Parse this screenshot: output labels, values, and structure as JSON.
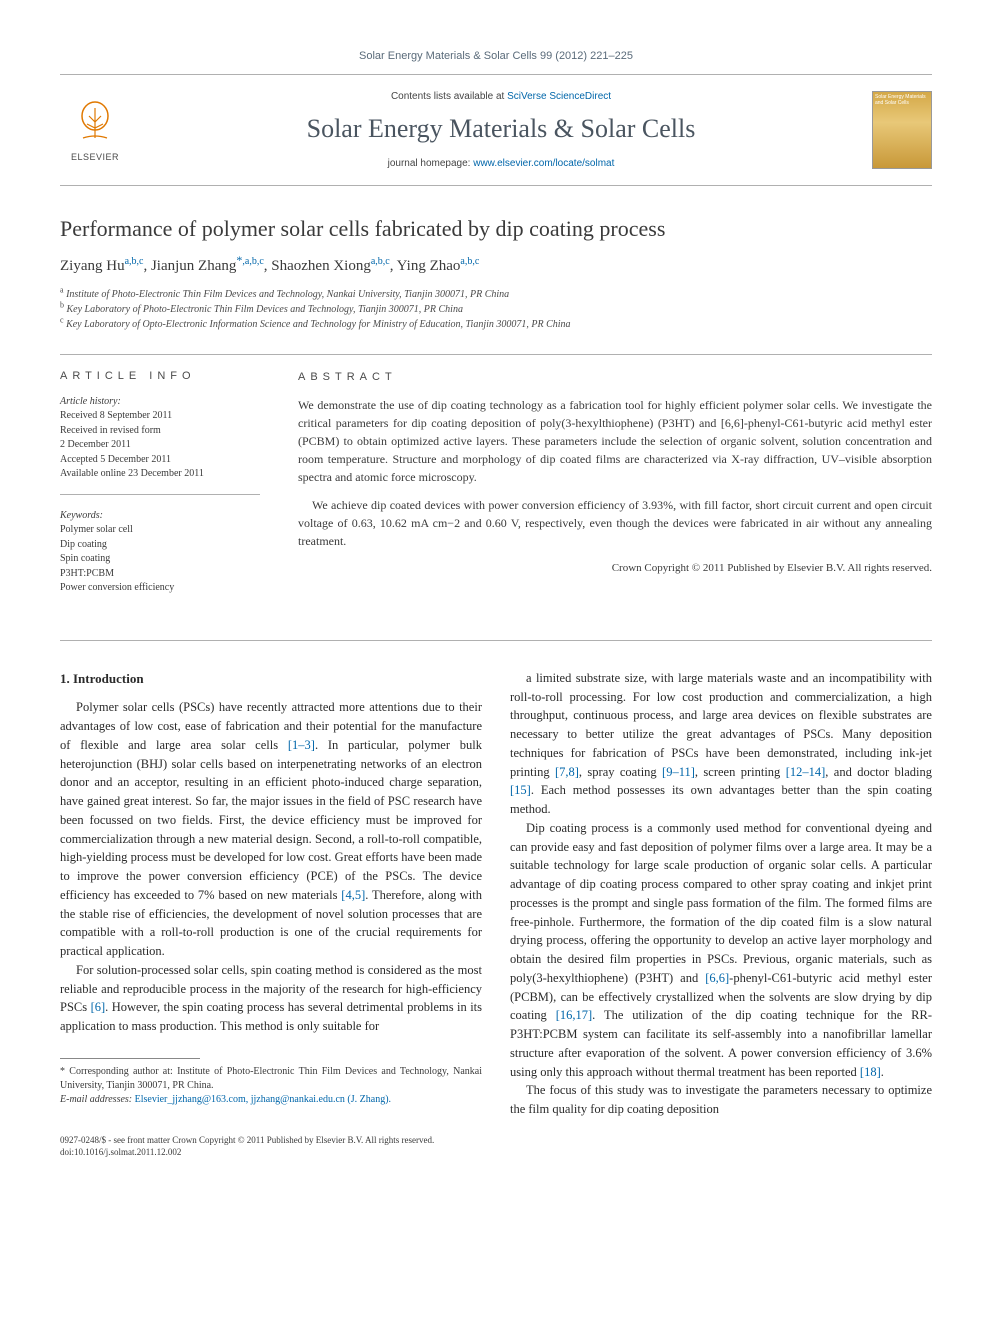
{
  "journal_header": "Solar Energy Materials & Solar Cells 99 (2012) 221–225",
  "masthead": {
    "contents_prefix": "Contents lists available at ",
    "contents_link": "SciVerse ScienceDirect",
    "journal_title": "Solar Energy Materials & Solar Cells",
    "homepage_prefix": "journal homepage: ",
    "homepage_link": "www.elsevier.com/locate/solmat",
    "publisher": "ELSEVIER",
    "cover_label": "Solar Energy Materials and Solar Cells"
  },
  "article": {
    "title": "Performance of polymer solar cells fabricated by dip coating process",
    "authors_html": "Ziyang Hu<sup>a,b,c</sup>, Jianjun Zhang<sup>*,a,b,c</sup>, Shaozhen Xiong<sup>a,b,c</sup>, Ying Zhao<sup>a,b,c</sup>",
    "affiliations": [
      "a Institute of Photo-Electronic Thin Film Devices and Technology, Nankai University, Tianjin 300071, PR China",
      "b Key Laboratory of Photo-Electronic Thin Film Devices and Technology, Tianjin 300071, PR China",
      "c Key Laboratory of Opto-Electronic Information Science and Technology for Ministry of Education, Tianjin 300071, PR China"
    ]
  },
  "meta": {
    "article_info_head": "ARTICLE INFO",
    "history_label": "Article history:",
    "history": [
      "Received 8 September 2011",
      "Received in revised form",
      "2 December 2011",
      "Accepted 5 December 2011",
      "Available online 23 December 2011"
    ],
    "keywords_label": "Keywords:",
    "keywords": [
      "Polymer solar cell",
      "Dip coating",
      "Spin coating",
      "P3HT:PCBM",
      "Power conversion efficiency"
    ]
  },
  "abstract": {
    "head": "ABSTRACT",
    "p1": "We demonstrate the use of dip coating technology as a fabrication tool for highly efficient polymer solar cells. We investigate the critical parameters for dip coating deposition of poly(3-hexylthiophene) (P3HT) and [6,6]-phenyl-C61-butyric acid methyl ester (PCBM) to obtain optimized active layers. These parameters include the selection of organic solvent, solution concentration and room temperature. Structure and morphology of dip coated films are characterized via X-ray diffraction, UV–visible absorption spectra and atomic force microscopy.",
    "p2": "We achieve dip coated devices with power conversion efficiency of 3.93%, with fill factor, short circuit current and open circuit voltage of 0.63, 10.62 mA cm−2 and 0.60 V, respectively, even though the devices were fabricated in air without any annealing treatment.",
    "copyright": "Crown Copyright © 2011 Published by Elsevier B.V. All rights reserved."
  },
  "body": {
    "section_heading": "1. Introduction",
    "left_p1": "Polymer solar cells (PSCs) have recently attracted more attentions due to their advantages of low cost, ease of fabrication and their potential for the manufacture of flexible and large area solar cells [1–3]. In particular, polymer bulk heterojunction (BHJ) solar cells based on interpenetrating networks of an electron donor and an acceptor, resulting in an efficient photo-induced charge separation, have gained great interest. So far, the major issues in the field of PSC research have been focussed on two fields. First, the device efficiency must be improved for commercialization through a new material design. Second, a roll-to-roll compatible, high-yielding process must be developed for low cost. Great efforts have been made to improve the power conversion efficiency (PCE) of the PSCs. The device efficiency has exceeded to 7% based on new materials [4,5]. Therefore, along with the stable rise of efficiencies, the development of novel solution processes that are compatible with a roll-to-roll production is one of the crucial requirements for practical application.",
    "left_p2": "For solution-processed solar cells, spin coating method is considered as the most reliable and reproducible process in the majority of the research for high-efficiency PSCs [6]. However, the spin coating process has several detrimental problems in its application to mass production. This method is only suitable for",
    "right_p1": "a limited substrate size, with large materials waste and an incompatibility with roll-to-roll processing. For low cost production and commercialization, a high throughput, continuous process, and large area devices on flexible substrates are necessary to better utilize the great advantages of PSCs. Many deposition techniques for fabrication of PSCs have been demonstrated, including ink-jet printing [7,8], spray coating [9–11], screen printing [12–14], and doctor blading [15]. Each method possesses its own advantages better than the spin coating method.",
    "right_p2": "Dip coating process is a commonly used method for conventional dyeing and can provide easy and fast deposition of polymer films over a large area. It may be a suitable technology for large scale production of organic solar cells. A particular advantage of dip coating process compared to other spray coating and inkjet print processes is the prompt and single pass formation of the film. The formed films are free-pinhole. Furthermore, the formation of the dip coated film is a slow natural drying process, offering the opportunity to develop an active layer morphology and obtain the desired film properties in PSCs. Previous, organic materials, such as poly(3-hexylthiophene) (P3HT) and [6,6]-phenyl-C61-butyric acid methyl ester (PCBM), can be effectively crystallized when the solvents are slow drying by dip coating [16,17]. The utilization of the dip coating technique for the RR-P3HT:PCBM system can facilitate its self-assembly into a nanofibrillar lamellar structure after evaporation of the solvent. A power conversion efficiency of 3.6% using only this approach without thermal treatment has been reported [18].",
    "right_p3": "The focus of this study was to investigate the parameters necessary to optimize the film quality for dip coating deposition"
  },
  "footnotes": {
    "corr": "* Corresponding author at: Institute of Photo-Electronic Thin Film Devices and Technology, Nankai University, Tianjin 300071, PR China.",
    "email_label": "E-mail addresses:",
    "emails": "Elsevier_jjzhang@163.com, jjzhang@nankai.edu.cn (J. Zhang).",
    "issn_line": "0927-0248/$ - see front matter Crown Copyright © 2011 Published by Elsevier B.V. All rights reserved.",
    "doi_line": "doi:10.1016/j.solmat.2011.12.002"
  },
  "colors": {
    "link": "#0066aa",
    "heading_gray": "#4a5560",
    "rule": "#b0b0b0"
  }
}
